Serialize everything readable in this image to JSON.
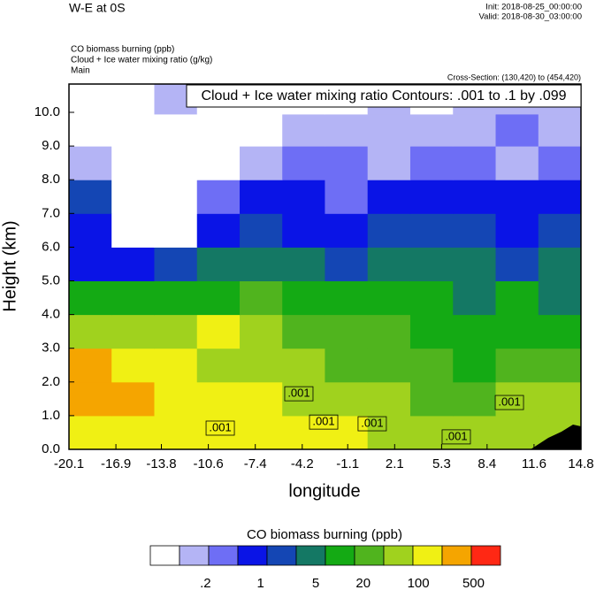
{
  "chart_data": {
    "type": "contour",
    "title": "W-E at 0S",
    "init": "Init: 2018-08-25_00:00:00",
    "valid": "Valid: 2018-08-30_03:00:00",
    "subtitles": [
      "CO biomass burning   (ppb)",
      "Cloud + Ice water mixing ratio   (g/kg)",
      "Main"
    ],
    "cross_section": "Cross-Section: (130,420) to (454,420)",
    "contour_info": "Cloud + Ice water mixing ratio Contours: .001 to .1 by .099",
    "xlabel": "longitude",
    "ylabel": "Height (km)",
    "xlim": [
      -20.1,
      14.8
    ],
    "ylim": [
      0,
      10.84
    ],
    "xticks": [
      -20.1,
      -16.9,
      -13.8,
      -10.6,
      -7.4,
      -4.2,
      -1.1,
      2.1,
      5.3,
      8.4,
      11.6,
      14.8
    ],
    "yticks": [
      {
        "value": 0,
        "label": "0.0"
      },
      {
        "value": 1,
        "label": "1.0"
      },
      {
        "value": 2,
        "label": "2.0"
      },
      {
        "value": 3,
        "label": "3.0"
      },
      {
        "value": 4,
        "label": "4.0"
      },
      {
        "value": 5,
        "label": "5.0"
      },
      {
        "value": 6,
        "label": "6.0"
      },
      {
        "value": 7,
        "label": "7.0"
      },
      {
        "value": 8,
        "label": "8.0"
      },
      {
        "value": 9,
        "label": "9.0"
      },
      {
        "value": 10,
        "label": "10.0"
      }
    ],
    "x": [
      -18.65,
      -15.74,
      -12.83,
      -9.92,
      -7.01,
      -4.11,
      -1.2,
      1.71,
      4.62,
      7.53,
      10.44,
      13.35
    ],
    "y": [
      0.5,
      1.5,
      2.5,
      3.5,
      4.5,
      5.5,
      6.5,
      7.5,
      8.5,
      9.5,
      10.4
    ],
    "z": [
      [
        130,
        130,
        130,
        130,
        130,
        130,
        130,
        55,
        55,
        55,
        55,
        55
      ],
      [
        300,
        300,
        130,
        130,
        130,
        55,
        55,
        55,
        25,
        25,
        55,
        55
      ],
      [
        300,
        130,
        130,
        55,
        55,
        55,
        25,
        25,
        25,
        10,
        25,
        25
      ],
      [
        55,
        55,
        55,
        130,
        55,
        25,
        25,
        25,
        10,
        10,
        10,
        10
      ],
      [
        10,
        10,
        10,
        10,
        25,
        10,
        10,
        10,
        10,
        4,
        10,
        4
      ],
      [
        0.8,
        0.8,
        2,
        4,
        4,
        4,
        2,
        4,
        4,
        4,
        2,
        4
      ],
      [
        0.8,
        0.06,
        0.06,
        0.8,
        2,
        0.8,
        0.8,
        2,
        2,
        2,
        0.8,
        2
      ],
      [
        2,
        0.06,
        0.06,
        0.35,
        0.8,
        0.8,
        0.35,
        0.8,
        0.8,
        0.8,
        0.8,
        0.8
      ],
      [
        0.15,
        0.06,
        0.06,
        0.06,
        0.15,
        0.35,
        0.35,
        0.15,
        0.35,
        0.35,
        0.15,
        0.35
      ],
      [
        0.06,
        0.06,
        0.06,
        0.06,
        0.06,
        0.15,
        0.15,
        0.15,
        0.15,
        0.15,
        0.35,
        0.15
      ],
      [
        0.06,
        0.06,
        0.15,
        0.06,
        0.06,
        0.06,
        0.06,
        0.15,
        0.06,
        0.15,
        0.15,
        0.15
      ]
    ],
    "contour_labels": [
      {
        "x": -9.79,
        "y": 0.63,
        "label": ".001"
      },
      {
        "x": -4.43,
        "y": 1.65,
        "label": ".001"
      },
      {
        "x": -2.74,
        "y": 0.81,
        "label": ".001"
      },
      {
        "x": 0.57,
        "y": 0.76,
        "label": ".001"
      },
      {
        "x": 6.3,
        "y": 0.37,
        "label": ".001"
      },
      {
        "x": 9.92,
        "y": 1.39,
        "label": ".001"
      }
    ],
    "colorbar": {
      "title": "CO biomass burning  (ppb)",
      "log": true,
      "clim": [
        0.04,
        1100
      ],
      "colors": [
        "#ffffff",
        "#b4b4f5",
        "#6e6ef5",
        "#0a14e6",
        "#1446b4",
        "#147864",
        "#14aa14",
        "#50b41e",
        "#a0d21e",
        "#f0f014",
        "#f5a500",
        "#ff2814"
      ],
      "ticks": [
        {
          "value": 0.2,
          "label": ".2"
        },
        1,
        5,
        20,
        100,
        500
      ]
    }
  }
}
